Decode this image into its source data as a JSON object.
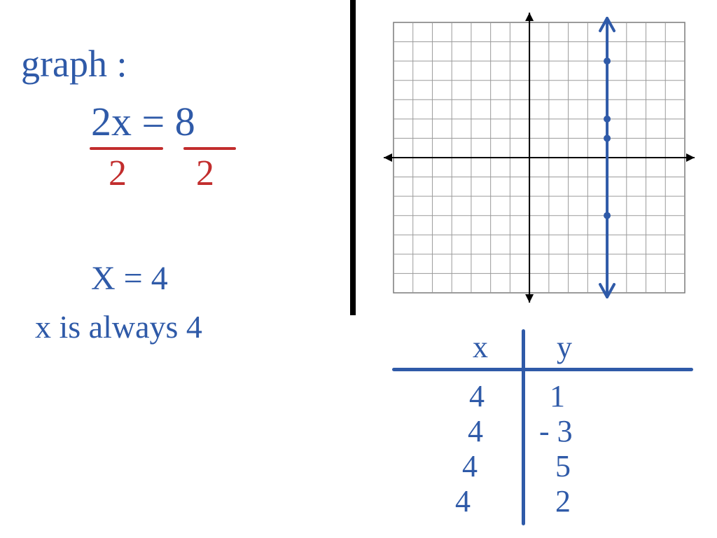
{
  "colors": {
    "ink_blue": "#2f5aa8",
    "ink_red": "#c22d2d",
    "grid_line": "#9a9a9a",
    "grid_border": "#7a7a7a",
    "axis": "#000000",
    "bg": "#ffffff"
  },
  "left": {
    "title": "graph :",
    "equation_top": "2x = 8",
    "equation_bottom_left": "2",
    "equation_bottom_right": "2",
    "solution": "X = 4",
    "note": "x is always 4"
  },
  "graph": {
    "type": "cartesian-grid",
    "x_range": [
      -7,
      8
    ],
    "y_range": [
      -7,
      7
    ],
    "grid_step": 1,
    "vertical_line_x": 4,
    "points": [
      {
        "x": 4,
        "y": 1
      },
      {
        "x": 4,
        "y": -3
      },
      {
        "x": 4,
        "y": 5
      },
      {
        "x": 4,
        "y": 2
      }
    ],
    "line_color": "#2f5aa8",
    "point_color": "#2f5aa8"
  },
  "tchart": {
    "headers": {
      "x": "x",
      "y": "y"
    },
    "rows": [
      {
        "x": "4",
        "y": "1"
      },
      {
        "x": "4",
        "y": "- 3"
      },
      {
        "x": "4",
        "y": "5"
      },
      {
        "x": "4",
        "y": "2"
      }
    ]
  }
}
